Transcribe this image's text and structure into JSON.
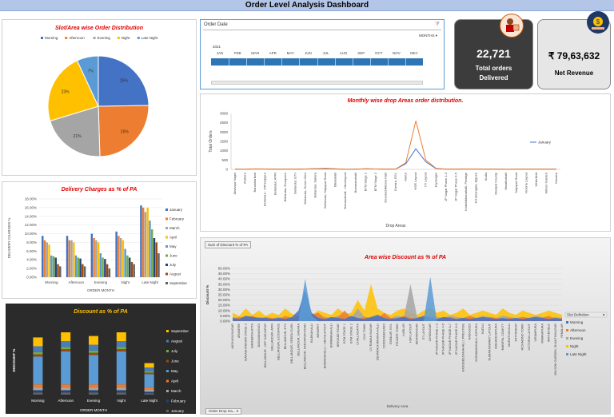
{
  "title": "Order Level Analysis Dashboard",
  "colors": {
    "morning": "#4472c4",
    "afternoon": "#ed7d31",
    "evening": "#a5a5a5",
    "night": "#ffc000",
    "late_night": "#5b9bd5"
  },
  "pie": {
    "title": "Slot/Area wise Order Distribution",
    "legend": [
      "Morning",
      "Afternoon",
      "Evening",
      "Night",
      "Late Night"
    ],
    "chart_data": {
      "type": "pie",
      "categories": [
        "Morning",
        "Afternoon",
        "Evening",
        "Night",
        "Late Night"
      ],
      "values": [
        25,
        25,
        21,
        23,
        7
      ],
      "labels": [
        "25%",
        "25%",
        "21%",
        "23%",
        "7%"
      ]
    }
  },
  "timeline": {
    "header": "Order Date",
    "level": "MONTHS",
    "year": "2021",
    "months": [
      "JAN",
      "FEB",
      "MAR",
      "APR",
      "MAY",
      "JUN",
      "JUL",
      "AUG",
      "SEP",
      "OCT",
      "NOV",
      "DEC"
    ]
  },
  "kpi1": {
    "value": "22,721",
    "label1": "Total orders",
    "label2": "Delivered"
  },
  "kpi2": {
    "value": "₹ 79,63,632",
    "label": "Net Revenue"
  },
  "line": {
    "title": "Monthly wise drop Areas order distribution.",
    "ylabel": "Total Orders",
    "xlabel": "Drop Areas",
    "legend": "January",
    "yticks": [
      "3000",
      "2500",
      "2000",
      "1500",
      "1000",
      "500",
      "0"
    ],
    "areas": [
      "Akshaya Nagar",
      "Arakere",
      "Banashankari",
      "Bellandur - Off Sarjapur",
      "Bellandur, APRI",
      "Bellandur, Ecospace",
      "Bellandur, ETV",
      "Bellandur, Green Glen",
      "Bellandur, Sakara",
      "Bellandur, Sarjapur Road",
      "Bilekahalli",
      "Bomanahalli - Hbcolayout",
      "Bommanahalli",
      "BTM Stage 1",
      "BTM Stage 2",
      "Devarachikkana Halli",
      "Domlur, EGL",
      "Harlur",
      "HSR Layout",
      "ITI Layout",
      "Jayanagar",
      "JP Nagar Phase 1-3",
      "JP Nagar Phase 4-5",
      "Kodichikkanahalli, Prestige",
      "Koramangala, Ejipura",
      "Kudlu",
      "Manipal County",
      "Marathahalli",
      "Sarjapur Road",
      "Victoria Layout",
      "Whitefield",
      "Wilson Garden",
      "Yemalur"
    ],
    "chart_data": {
      "type": "line",
      "y_range": [
        0,
        3000
      ],
      "series": [
        {
          "name": "January",
          "values": [
            10,
            5,
            20,
            15,
            10,
            10,
            10,
            15,
            30,
            40,
            20,
            5,
            10,
            25,
            20,
            10,
            15,
            300,
            1100,
            400,
            40,
            10,
            10,
            20,
            10,
            10,
            10,
            5,
            10,
            10,
            10,
            10,
            10
          ]
        },
        {
          "name": "",
          "values": [
            10,
            5,
            25,
            20,
            10,
            10,
            10,
            20,
            40,
            60,
            30,
            5,
            10,
            30,
            20,
            10,
            20,
            350,
            2600,
            500,
            60,
            10,
            10,
            20,
            10,
            10,
            10,
            5,
            10,
            10,
            10,
            10,
            10
          ]
        }
      ]
    }
  },
  "bar": {
    "title": "Delivery Charges as % of PA",
    "ylabel": "DELIVERY CHARGES %",
    "xlabel": "ORDER MONTH",
    "yticks": [
      "18.00%",
      "16.00%",
      "14.00%",
      "12.00%",
      "10.00%",
      "8.00%",
      "6.00%",
      "4.00%",
      "2.00%",
      "0.00%"
    ],
    "legend": [
      "January",
      "February",
      "March",
      "April",
      "May",
      "June",
      "July",
      "August",
      "September"
    ],
    "chart_data": {
      "type": "bar",
      "categories": [
        "Morning",
        "Afternoon",
        "Evening",
        "Night",
        "Late Night"
      ],
      "y_range": [
        0,
        18
      ],
      "series": [
        {
          "name": "January",
          "values": [
            9.5,
            9.5,
            10,
            10.5,
            16.5
          ]
        },
        {
          "name": "February",
          "values": [
            8.5,
            8.5,
            9,
            9.5,
            16
          ]
        },
        {
          "name": "March",
          "values": [
            8,
            8.5,
            8.5,
            9,
            15
          ]
        },
        {
          "name": "April",
          "values": [
            7.5,
            8,
            8,
            8.5,
            16
          ]
        },
        {
          "name": "May",
          "values": [
            5,
            5,
            5.5,
            6.5,
            13
          ]
        },
        {
          "name": "June",
          "values": [
            4.8,
            4.5,
            4.5,
            5,
            11
          ]
        },
        {
          "name": "July",
          "values": [
            4.5,
            4.3,
            4.2,
            4.5,
            9
          ]
        },
        {
          "name": "August",
          "values": [
            3,
            3,
            3,
            3.5,
            8
          ]
        },
        {
          "name": "September",
          "values": [
            2.5,
            2.5,
            2,
            3,
            5.5
          ]
        }
      ]
    }
  },
  "stacked": {
    "title": "Discount as % of PA",
    "ylabel": "DISCOUNT %",
    "xlabel": "ORDER MONTH",
    "legend": [
      "September",
      "August",
      "July",
      "June",
      "May",
      "April",
      "March",
      "February",
      "January"
    ],
    "legend_colors": [
      "#ffc000",
      "#4a7ebb",
      "#70ad47",
      "#9e480e",
      "#5b9bd5",
      "#ed7d31",
      "#a5a5a5",
      "#264478",
      "#636363"
    ],
    "chart_data": {
      "type": "bar",
      "stacked": true,
      "categories": [
        "Morning",
        "Afternoon",
        "Evening",
        "Night",
        "Late Night"
      ],
      "series": [
        {
          "name": "January",
          "values": [
            3,
            3,
            3,
            3,
            2
          ]
        },
        {
          "name": "February",
          "values": [
            3,
            3,
            3,
            3,
            2
          ]
        },
        {
          "name": "March",
          "values": [
            4,
            4,
            4,
            4,
            3
          ]
        },
        {
          "name": "April",
          "values": [
            4,
            4,
            4,
            4,
            3
          ]
        },
        {
          "name": "May",
          "values": [
            38,
            45,
            40,
            45,
            18
          ]
        },
        {
          "name": "June",
          "values": [
            3,
            3,
            3,
            3,
            2
          ]
        },
        {
          "name": "July",
          "values": [
            3,
            3,
            3,
            3,
            2
          ]
        },
        {
          "name": "August",
          "values": [
            8,
            8,
            8,
            8,
            5
          ]
        },
        {
          "name": "September",
          "values": [
            12,
            12,
            12,
            12,
            6
          ]
        }
      ]
    }
  },
  "area": {
    "tab": "Sum of Discount % of PA",
    "title": "Area wise Discount as % of PA",
    "ylabel": "Discount %",
    "xlabel": "Delivery Area",
    "filter": "Order Drop Ga...",
    "yticks": [
      "50.00%",
      "45.00%",
      "40.00%",
      "35.00%",
      "30.00%",
      "25.00%",
      "20.00%",
      "15.00%",
      "10.00%",
      "5.00%",
      "0.00%"
    ],
    "legend_header": "Slot Definition",
    "legend": [
      "Morning",
      "Afternoon",
      "Evening",
      "Night",
      "Late Night"
    ],
    "areas": [
      "AKSHAYA NAGAR",
      "ARAKERE",
      "BANASHANKARI STAGE 2",
      "BANNERGHATTA",
      "BASAVANAGUDI",
      "BELLANDUR - OFF SARJAPUR",
      "BELLANDUR, APRI",
      "BELLANDUR, ECOSPACE",
      "BELLANDUR, ETV",
      "BELLANDUR, GREEN GLEN",
      "BELLANDUR, SAKARA",
      "BELLANDUR, SARJAPUR ROAD",
      "BILEKAHALLI",
      "BINNIPET",
      "BOMANAHALLI - HBCOLAYOUT",
      "BOMMANAHALLI",
      "BRIGADE ROAD",
      "BTM STAGE 1",
      "BTM STAGE 2",
      "CHALLAGATTA",
      "COX TOWN",
      "CV RAMAN NAGAR",
      "DEVARACHIKKANA HALLI",
      "DODDANEKUNDI",
      "DOMLUR, EGL",
      "FRAZER TOWN",
      "HARLUR",
      "HSR LAYOUT",
      "INDIRANAGAR",
      "ITI LAYOUT",
      "JAYANAGAR",
      "JP NAGAR PHASE 1-3",
      "JP NAGAR PHASE 4-5",
      "JP NAGAR PHASE 6-7",
      "JP NAGAR PHASE 8-9",
      "KADUBEESANAHALLI, PRESTIGE",
      "KADUGODI",
      "KORAMANGALA, EJIPURA",
      "KUDLU",
      "KUMARASWAMY LAYOUT",
      "MAHADEVAPURA",
      "MANIPAL COUNTY",
      "MARATHAHALLI",
      "PATTANDUR",
      "RICHMOND TOWN",
      "VICTORIA LAYOUT",
      "VIRAMPURA",
      "VIMANAPURA",
      "WHITEFIELD",
      "WILSON GARDEN, SHANTHINAGAR",
      "YEMALUR"
    ],
    "chart_data": {
      "type": "area",
      "y_range": [
        0,
        50
      ],
      "series": [
        {
          "name": "Morning",
          "values": [
            3,
            2,
            5,
            4,
            3,
            3,
            2,
            3,
            2,
            4,
            10,
            30,
            8,
            3,
            2,
            4,
            3,
            2,
            5,
            3,
            2,
            4,
            6,
            3,
            2,
            3,
            4,
            2,
            3,
            5,
            3,
            2,
            4,
            3,
            2,
            3,
            2,
            3,
            4,
            3,
            2,
            3,
            2,
            3,
            2,
            3,
            4,
            3,
            2,
            3,
            2
          ]
        },
        {
          "name": "Afternoon",
          "values": [
            2,
            4,
            3,
            5,
            2,
            4,
            3,
            2,
            5,
            3,
            4,
            2,
            6,
            8,
            3,
            2,
            4,
            10,
            3,
            2,
            4,
            3,
            2,
            8,
            3,
            2,
            5,
            3,
            2,
            4,
            3,
            2,
            3,
            4,
            2,
            3,
            5,
            3,
            2,
            4,
            3,
            2,
            3,
            2,
            4,
            3,
            2,
            3,
            5,
            2,
            3
          ]
        },
        {
          "name": "Evening",
          "values": [
            4,
            3,
            5,
            3,
            4,
            3,
            3,
            4,
            3,
            3,
            5,
            4,
            3,
            5,
            4,
            3,
            5,
            4,
            3,
            12,
            4,
            3,
            6,
            4,
            3,
            5,
            4,
            35,
            4,
            3,
            5,
            4,
            3,
            5,
            4,
            3,
            4,
            3,
            5,
            4,
            3,
            5,
            4,
            3,
            4,
            3,
            5,
            4,
            3,
            4,
            3
          ]
        },
        {
          "name": "Night",
          "values": [
            8,
            5,
            12,
            6,
            10,
            5,
            8,
            6,
            12,
            7,
            5,
            8,
            6,
            10,
            8,
            6,
            12,
            7,
            8,
            20,
            10,
            35,
            12,
            8,
            6,
            10,
            12,
            8,
            6,
            10,
            12,
            8,
            10,
            6,
            8,
            12,
            6,
            8,
            10,
            8,
            6,
            12,
            8,
            6,
            10,
            8,
            6,
            8,
            10,
            8,
            6
          ]
        },
        {
          "name": "Late Night",
          "values": [
            0,
            0,
            0,
            0,
            0,
            0,
            0,
            0,
            0,
            0,
            0,
            40,
            5,
            0,
            0,
            0,
            0,
            0,
            0,
            0,
            0,
            0,
            0,
            0,
            0,
            0,
            0,
            0,
            0,
            0,
            42,
            0,
            0,
            0,
            0,
            0,
            0,
            0,
            0,
            0,
            0,
            0,
            0,
            0,
            0,
            0,
            0,
            0,
            0,
            0,
            0
          ]
        }
      ]
    }
  }
}
